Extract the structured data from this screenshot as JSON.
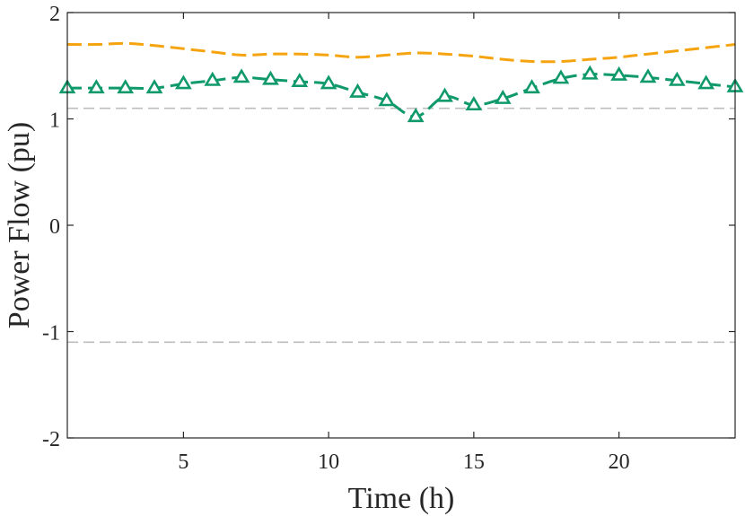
{
  "chart_data": {
    "type": "line",
    "title": "",
    "xlabel": "Time (h)",
    "ylabel": "Power Flow (pu)",
    "xlim": [
      1,
      24
    ],
    "ylim": [
      -2,
      2
    ],
    "xticks": [
      5,
      10,
      15,
      20
    ],
    "yticks": [
      -2,
      -1,
      0,
      1,
      2
    ],
    "x": [
      1,
      2,
      3,
      4,
      5,
      6,
      7,
      8,
      9,
      10,
      11,
      12,
      13,
      14,
      15,
      16,
      17,
      18,
      19,
      20,
      21,
      22,
      23,
      24
    ],
    "series": [
      {
        "color": "#f5a40f",
        "style": "dashed",
        "marker": "none",
        "values": [
          1.7,
          1.7,
          1.71,
          1.69,
          1.66,
          1.63,
          1.6,
          1.61,
          1.61,
          1.6,
          1.58,
          1.6,
          1.62,
          1.61,
          1.59,
          1.56,
          1.54,
          1.54,
          1.56,
          1.58,
          1.61,
          1.64,
          1.67,
          1.7
        ]
      },
      {
        "color": "#109a6c",
        "style": "dashed",
        "marker": "triangle",
        "values": [
          1.29,
          1.29,
          1.29,
          1.29,
          1.33,
          1.36,
          1.39,
          1.37,
          1.35,
          1.33,
          1.25,
          1.17,
          1.02,
          1.21,
          1.13,
          1.19,
          1.29,
          1.38,
          1.42,
          1.41,
          1.39,
          1.36,
          1.33,
          1.3
        ]
      }
    ],
    "reference_lines": {
      "color": "#bdbdbd",
      "style": "dashed",
      "values": [
        1.1,
        -1.1
      ]
    },
    "grid": false,
    "legend": "none"
  }
}
